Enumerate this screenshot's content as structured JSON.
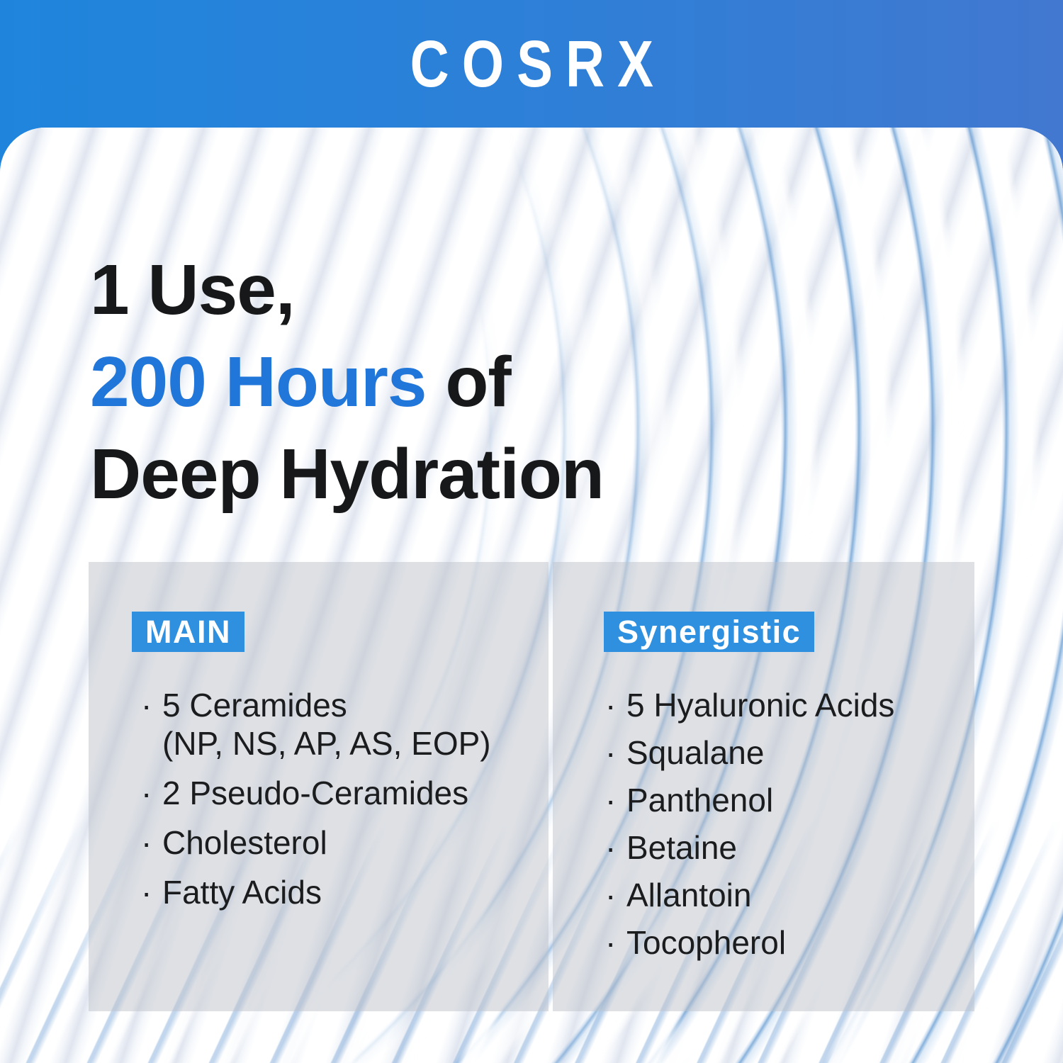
{
  "brand": "COSRX",
  "headline": {
    "line1": "1 Use,",
    "line2_highlight": "200 Hours",
    "line2_rest": " of",
    "line3": "Deep Hydration"
  },
  "panels": {
    "main": {
      "badge": "MAIN",
      "items": [
        {
          "text": "5 Ceramides",
          "sub": "(NP, NS, AP, AS, EOP)"
        },
        {
          "text": "2 Pseudo-Ceramides"
        },
        {
          "text": "Cholesterol"
        },
        {
          "text": "Fatty Acids"
        }
      ]
    },
    "synergistic": {
      "badge": "Synergistic",
      "items": [
        "5 Hyaluronic Acids",
        "Squalane",
        "Panthenol",
        "Betaine",
        "Allantoin",
        "Tocopherol"
      ]
    }
  },
  "colors": {
    "header_gradient_left": "#1F85DC",
    "header_gradient_right": "#4278D0",
    "badge_blue": "#2E90DE",
    "headline_highlight_blue": "#2176DA",
    "headline_text": "#17181A",
    "panel_overlay_grey": "#DCDEE2",
    "cream_line_blue": "#6098D0"
  }
}
